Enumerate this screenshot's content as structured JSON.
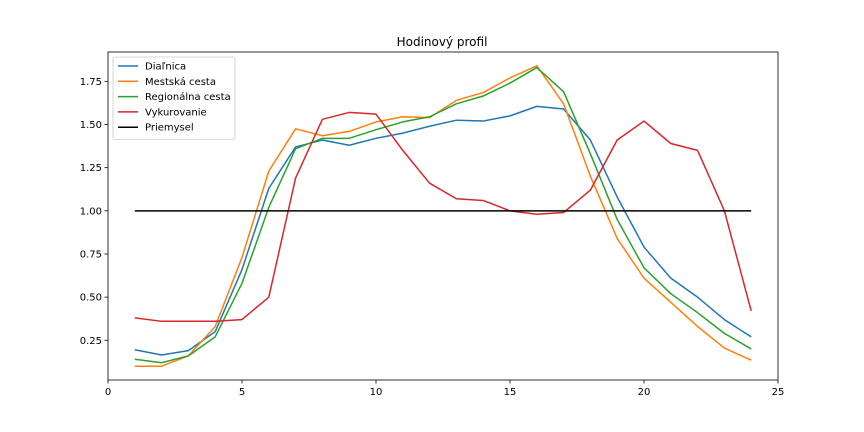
{
  "chart_data": {
    "type": "line",
    "title": "Hodinový profil",
    "xlabel": "",
    "ylabel": "",
    "xlim": [
      0,
      25
    ],
    "ylim": [
      0.02,
      1.92
    ],
    "xticks": [
      0,
      5,
      10,
      15,
      20,
      25
    ],
    "yticks": [
      0.25,
      0.5,
      0.75,
      1.0,
      1.25,
      1.5,
      1.75
    ],
    "ytick_labels": [
      "0.25",
      "0.50",
      "0.75",
      "1.00",
      "1.25",
      "1.50",
      "1.75"
    ],
    "grid": false,
    "legend_position": "top-left",
    "x": [
      1,
      2,
      3,
      4,
      5,
      6,
      7,
      8,
      9,
      10,
      11,
      12,
      13,
      14,
      15,
      16,
      17,
      18,
      19,
      20,
      21,
      22,
      23,
      24
    ],
    "series": [
      {
        "name": "Diaľnica",
        "color": "#1f77b4",
        "values": [
          0.195,
          0.165,
          0.19,
          0.3,
          0.66,
          1.13,
          1.37,
          1.41,
          1.38,
          1.42,
          1.45,
          1.49,
          1.525,
          1.52,
          1.55,
          1.605,
          1.59,
          1.41,
          1.08,
          0.79,
          0.61,
          0.5,
          0.37,
          0.27
        ]
      },
      {
        "name": "Mestská cesta",
        "color": "#ff7f0e",
        "values": [
          0.1,
          0.1,
          0.16,
          0.33,
          0.73,
          1.23,
          1.475,
          1.435,
          1.46,
          1.515,
          1.545,
          1.54,
          1.64,
          1.685,
          1.77,
          1.84,
          1.62,
          1.2,
          0.84,
          0.61,
          0.47,
          0.33,
          0.205,
          0.135
        ]
      },
      {
        "name": "Regionálna cesta",
        "color": "#2ca02c",
        "values": [
          0.14,
          0.12,
          0.16,
          0.27,
          0.58,
          1.02,
          1.36,
          1.42,
          1.42,
          1.47,
          1.515,
          1.545,
          1.62,
          1.665,
          1.74,
          1.83,
          1.69,
          1.33,
          0.95,
          0.67,
          0.52,
          0.41,
          0.29,
          0.2
        ]
      },
      {
        "name": "Vykurovanie",
        "color": "#d62728",
        "values": [
          0.38,
          0.36,
          0.36,
          0.36,
          0.37,
          0.5,
          1.19,
          1.53,
          1.57,
          1.56,
          1.35,
          1.16,
          1.07,
          1.06,
          1.0,
          0.98,
          0.99,
          1.12,
          1.41,
          1.52,
          1.39,
          1.35,
          1.0,
          0.42
        ]
      },
      {
        "name": "Priemysel",
        "color": "#000000",
        "values": [
          1,
          1,
          1,
          1,
          1,
          1,
          1,
          1,
          1,
          1,
          1,
          1,
          1,
          1,
          1,
          1,
          1,
          1,
          1,
          1,
          1,
          1,
          1,
          1
        ]
      }
    ]
  }
}
